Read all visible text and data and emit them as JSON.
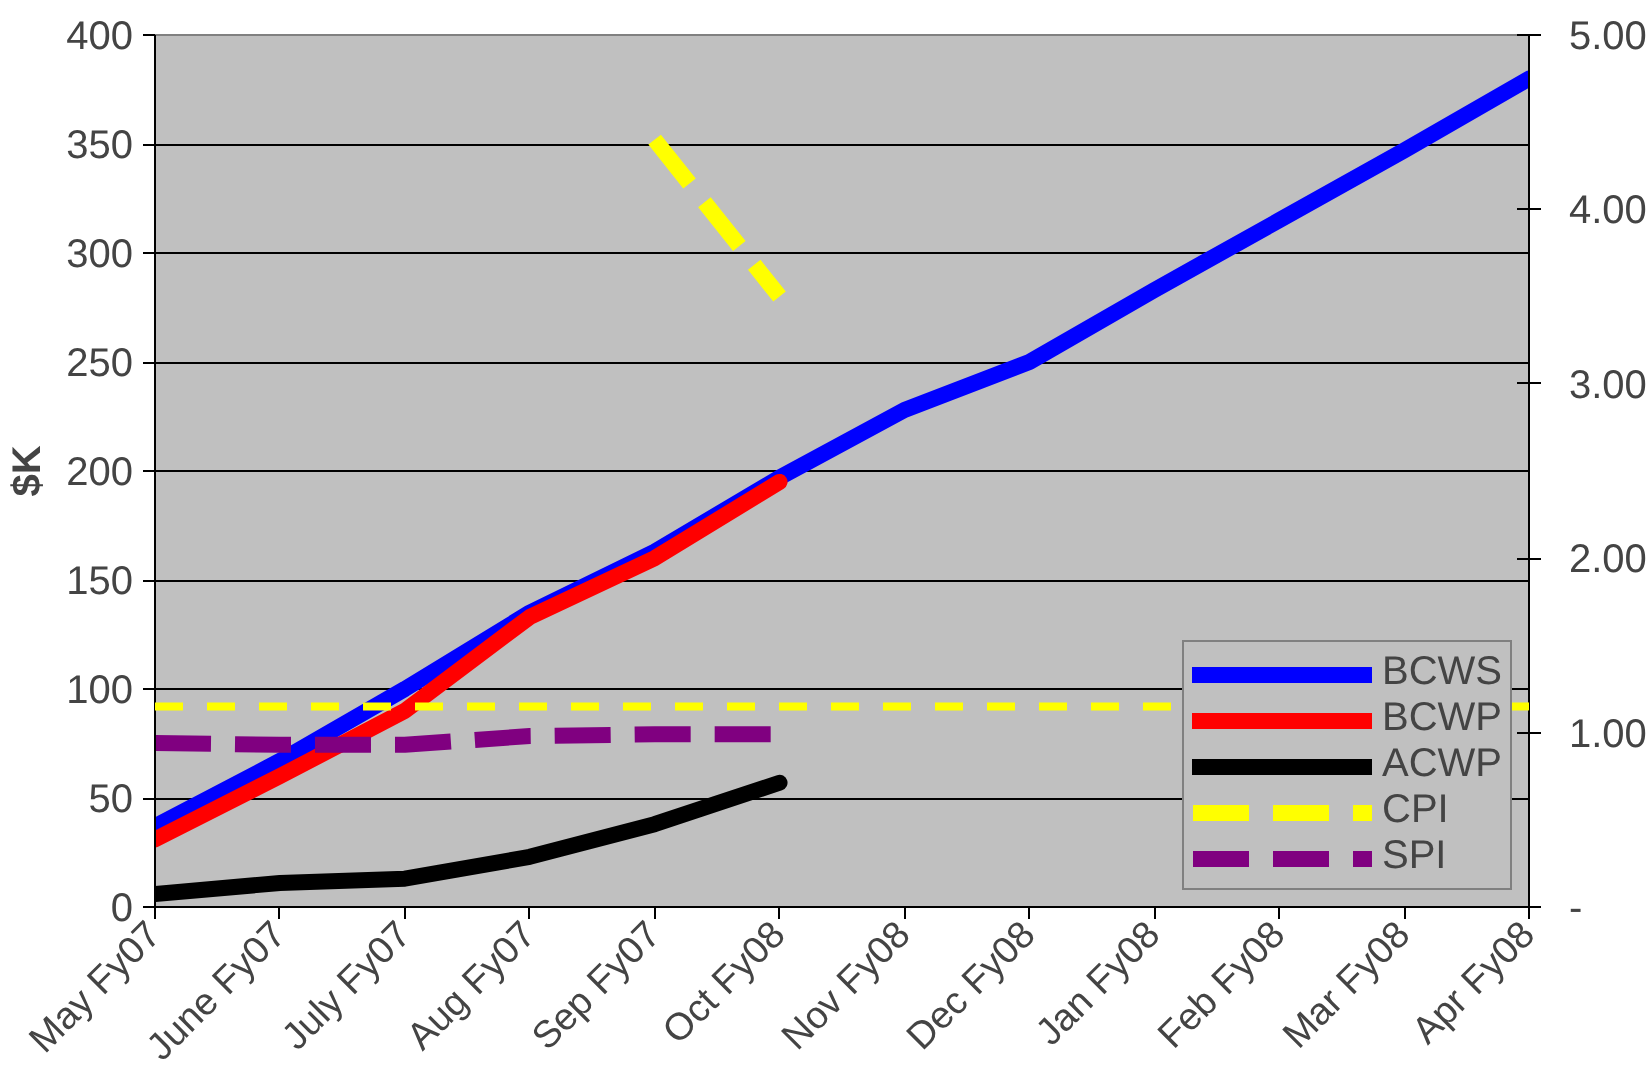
{
  "chart_data": {
    "type": "line",
    "ylabel": "$K",
    "categories": [
      "May Fy07",
      "June Fy07",
      "July Fy07",
      "Aug Fy07",
      "Sep Fy07",
      "Oct Fy08",
      "Nov Fy08",
      "Dec Fy08",
      "Jan Fy08",
      "Feb Fy08",
      "Mar Fy08",
      "Apr Fy08"
    ],
    "series": [
      {
        "name": "BCWS",
        "color": "#0000ff",
        "values": [
          37,
          67,
          100,
          135,
          163,
          197,
          228,
          250,
          283,
          315,
          347,
          380
        ]
      },
      {
        "name": "BCWP",
        "color": "#ff0000",
        "values": [
          31,
          60,
          90,
          133,
          160,
          195,
          null,
          null,
          null,
          null,
          null,
          null
        ]
      },
      {
        "name": "ACWP",
        "color": "#000000",
        "values": [
          6,
          11,
          13,
          23,
          38,
          57,
          null,
          null,
          null,
          null,
          null,
          null
        ]
      },
      {
        "name": "CPI",
        "color": "#ffff00",
        "axis": "y2",
        "line_style": "dashed",
        "values": [
          null,
          null,
          null,
          null,
          4.4,
          3.5,
          null,
          null,
          null,
          null,
          null,
          null
        ]
      },
      {
        "name": "SPI",
        "color": "#800080",
        "axis": "y2",
        "line_style": "dashed",
        "values": [
          0.94,
          0.93,
          0.93,
          0.98,
          0.99,
          0.99,
          null,
          null,
          null,
          null,
          null,
          null
        ]
      }
    ],
    "ylim": [
      0,
      400
    ],
    "yticks": [
      0,
      50,
      100,
      150,
      200,
      250,
      300,
      350,
      400
    ],
    "y2lim": [
      0,
      5
    ],
    "y2ticks": [
      {
        "value": 0,
        "label": "-"
      },
      {
        "value": 1,
        "label": "1.00"
      },
      {
        "value": 2,
        "label": "2.00"
      },
      {
        "value": 3,
        "label": "3.00"
      },
      {
        "value": 4,
        "label": "4.00"
      },
      {
        "value": 5,
        "label": "5.00"
      }
    ],
    "ref_lines": [
      {
        "axis": "y2",
        "value": 1.15,
        "color": "#ffff00",
        "line_style": "dashed"
      }
    ],
    "grid": "y",
    "legend": "bottom right",
    "marker": "none"
  }
}
